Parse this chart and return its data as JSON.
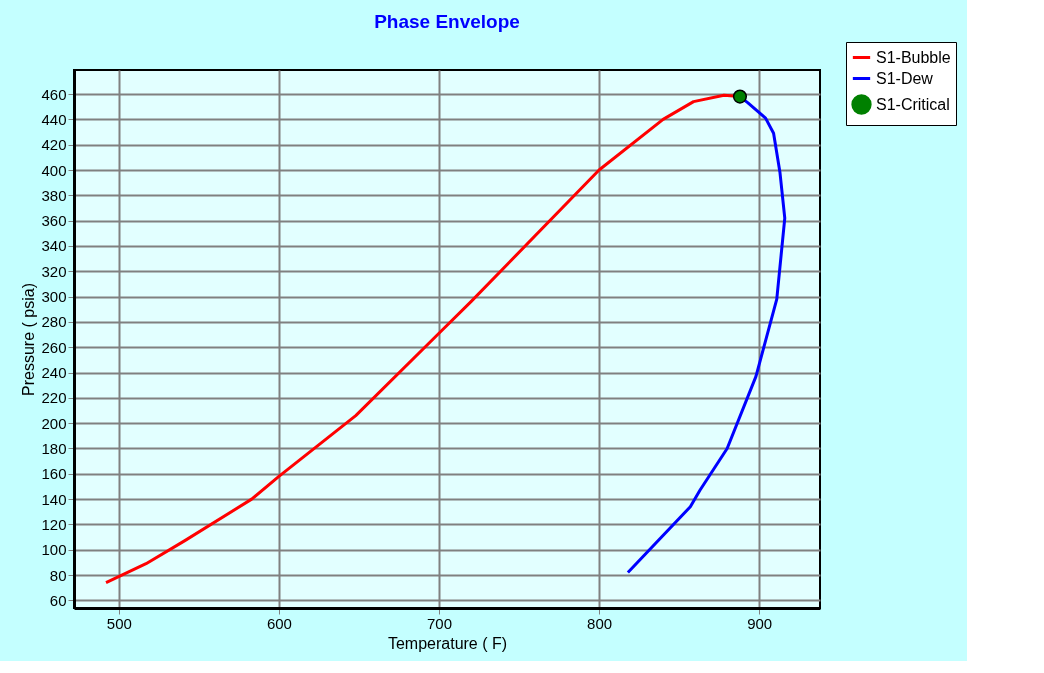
{
  "chart_data": {
    "type": "line",
    "title": "Phase Envelope",
    "xlabel": "Temperature ( F)",
    "ylabel": "Pressure ( psia)",
    "xlim": [
      472,
      938
    ],
    "ylim": [
      54,
      479
    ],
    "xticks": [
      500,
      600,
      700,
      800,
      900
    ],
    "yticks": [
      60,
      80,
      100,
      120,
      140,
      160,
      180,
      200,
      220,
      240,
      260,
      280,
      300,
      320,
      340,
      360,
      380,
      400,
      420,
      440,
      460
    ],
    "grid": true,
    "legend": "top right",
    "series": [
      {
        "name": "S1-Bubble",
        "color": "#ff0000",
        "x": [
          492,
          517,
          541,
          583,
          600,
          648,
          700,
          720,
          800,
          840,
          859,
          878,
          888
        ],
        "values": [
          74,
          89,
          107,
          140,
          158,
          206,
          271,
          296,
          400,
          440,
          454,
          459,
          458
        ]
      },
      {
        "name": "S1-Dew",
        "color": "#0000ff",
        "x": [
          888,
          893,
          904,
          909,
          913,
          916,
          911,
          898,
          880,
          863,
          857,
          818
        ],
        "values": [
          458,
          453,
          441,
          429,
          398,
          362,
          298,
          237,
          180,
          147,
          134,
          82
        ]
      },
      {
        "name": "S1-Critical",
        "type": "scatter",
        "marker": "circle",
        "color": "#008000",
        "x": [
          888
        ],
        "values": [
          458
        ]
      }
    ]
  }
}
